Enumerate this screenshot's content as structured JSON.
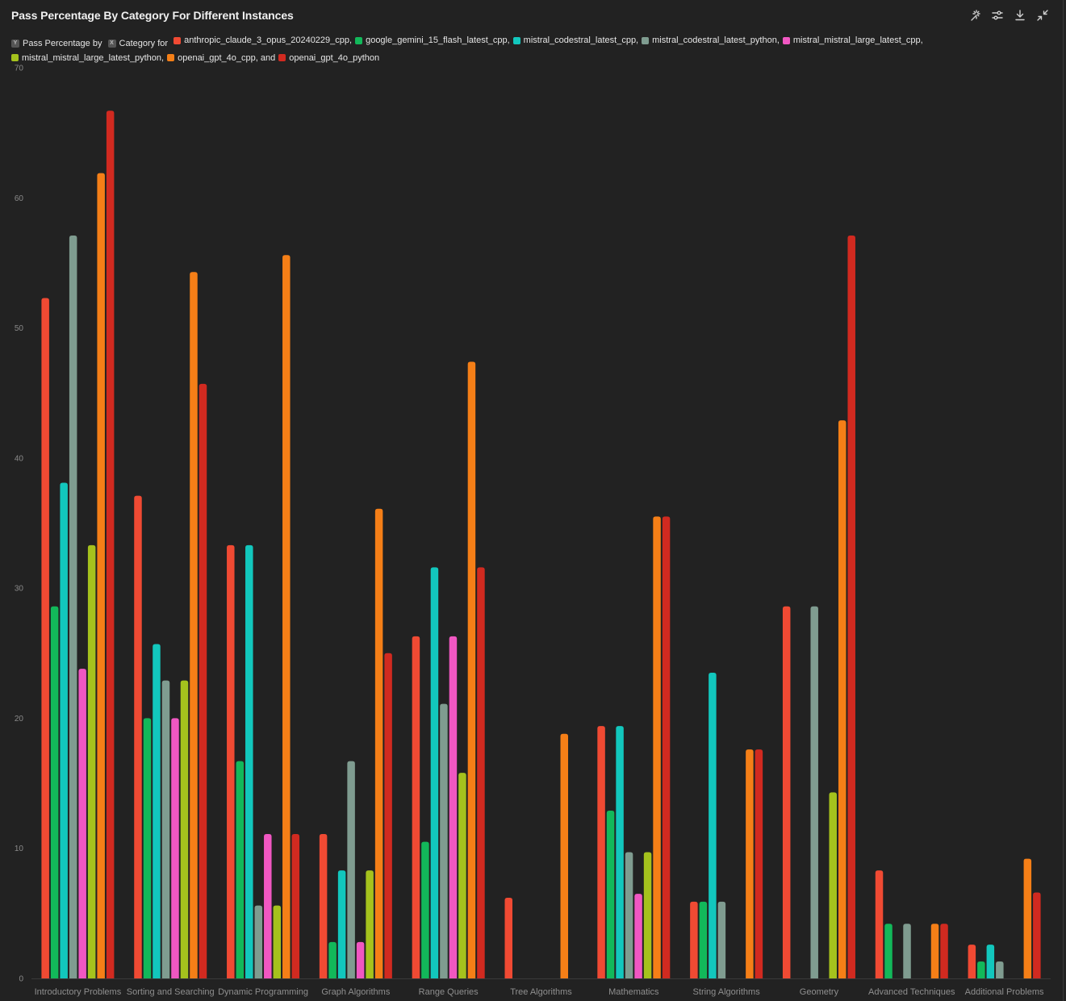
{
  "title": "Pass Percentage By Category For Different Instances",
  "toolbar": [
    {
      "name": "magic-icon",
      "label": "reset"
    },
    {
      "name": "sliders-icon",
      "label": "settings"
    },
    {
      "name": "download-icon",
      "label": "download"
    },
    {
      "name": "collapse-icon",
      "label": "collapse"
    }
  ],
  "legend": {
    "y_tag": "Y",
    "y_text": "Pass Percentage by",
    "x_tag": "X",
    "x_text": "Category for",
    "entries": [
      {
        "label": "anthropic_claude_3_opus_20240229_cpp,",
        "color": "#f04a33"
      },
      {
        "label": "google_gemini_15_flash_latest_cpp,",
        "color": "#12b85a"
      },
      {
        "label": "mistral_codestral_latest_cpp,",
        "color": "#12c7bd"
      },
      {
        "label": "mistral_codestral_latest_python,",
        "color": "#7f9c90"
      },
      {
        "label": "mistral_mistral_large_latest_cpp,",
        "color": "#f057c2"
      },
      {
        "label": "mistral_mistral_large_latest_python,",
        "color": "#a5c21d"
      },
      {
        "label": "openai_gpt_4o_cpp, and",
        "color": "#f57f17"
      },
      {
        "label": "openai_gpt_4o_python",
        "color": "#d12a20"
      }
    ]
  },
  "chart_data": {
    "type": "bar",
    "title": "Pass Percentage By Category For Different Instances",
    "xlabel": "Category",
    "ylabel": "Pass Percentage",
    "ylim": [
      0,
      70
    ],
    "yticks": [
      0,
      10,
      20,
      30,
      40,
      50,
      60,
      70
    ],
    "grid": false,
    "legend_position": "top",
    "categories": [
      "Introductory Problems",
      "Sorting and Searching",
      "Dynamic Programming",
      "Graph Algorithms",
      "Range Queries",
      "Tree Algorithms",
      "Mathematics",
      "String Algorithms",
      "Geometry",
      "Advanced Techniques",
      "Additional Problems"
    ],
    "series": [
      {
        "name": "anthropic_claude_3_opus_20240229_cpp",
        "color": "#f04a33",
        "values": [
          52.3,
          37.1,
          33.3,
          11.1,
          26.3,
          6.2,
          19.4,
          5.9,
          28.6,
          8.3,
          2.6
        ]
      },
      {
        "name": "google_gemini_15_flash_latest_cpp",
        "color": "#12b85a",
        "values": [
          28.6,
          20.0,
          16.7,
          2.8,
          10.5,
          0,
          12.9,
          5.9,
          0,
          4.2,
          1.3
        ]
      },
      {
        "name": "mistral_codestral_latest_cpp",
        "color": "#12c7bd",
        "values": [
          38.1,
          25.7,
          33.3,
          8.3,
          31.6,
          0,
          19.4,
          23.5,
          0,
          0,
          2.6
        ]
      },
      {
        "name": "mistral_codestral_latest_python",
        "color": "#7f9c90",
        "values": [
          57.1,
          22.9,
          5.6,
          16.7,
          21.1,
          0,
          9.7,
          5.9,
          28.6,
          4.2,
          1.3
        ]
      },
      {
        "name": "mistral_mistral_large_latest_cpp",
        "color": "#f057c2",
        "values": [
          23.8,
          20.0,
          11.1,
          2.8,
          26.3,
          0,
          6.5,
          0,
          0,
          0,
          0
        ]
      },
      {
        "name": "mistral_mistral_large_latest_python",
        "color": "#a5c21d",
        "values": [
          33.3,
          22.9,
          5.6,
          8.3,
          15.8,
          0,
          9.7,
          0,
          14.3,
          0,
          0
        ]
      },
      {
        "name": "openai_gpt_4o_cpp",
        "color": "#f57f17",
        "values": [
          61.9,
          54.3,
          55.6,
          36.1,
          47.4,
          18.8,
          35.5,
          17.6,
          42.9,
          4.2,
          9.2
        ]
      },
      {
        "name": "openai_gpt_4o_python",
        "color": "#d12a20",
        "values": [
          66.7,
          45.7,
          11.1,
          25.0,
          31.6,
          0,
          35.5,
          17.6,
          57.1,
          4.2,
          6.6
        ]
      }
    ]
  }
}
